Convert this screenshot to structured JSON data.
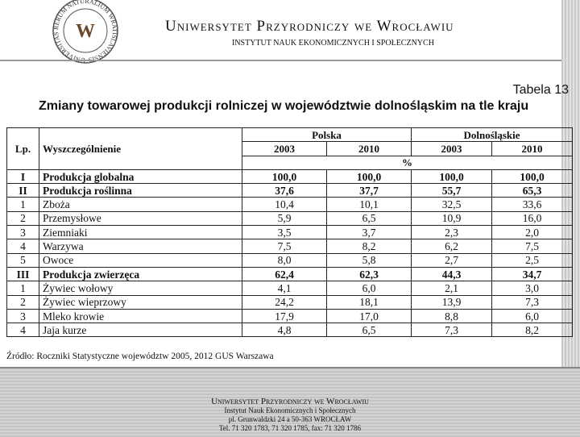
{
  "header": {
    "logo_text": "UNIVERSITAS RERUM NATURALIUM WRATISLAVIENSIS",
    "logo_letter": "W",
    "title": "Uniwersytet Przyrodniczy we Wrocławiu",
    "subtitle": "INSTYTUT NAUK EKONOMICZNYCH I SPOŁECZNYCH"
  },
  "table_label": "Tabela 13",
  "table_title": "Zmiany towarowej produkcji rolniczej w województwie dolnośląskim na tle kraju",
  "table": {
    "lp_header": "Lp.",
    "name_header": "Wyszczególnienie",
    "groups": [
      "Polska",
      "Dolnośląskie"
    ],
    "years": [
      "2003",
      "2010",
      "2003",
      "2010"
    ],
    "unit": "%",
    "rows": [
      {
        "lp": "I",
        "name": "Produkcja globalna",
        "values": [
          "100,0",
          "100,0",
          "100,0",
          "100,0"
        ],
        "bold": true
      },
      {
        "lp": "II",
        "name": "Produkcja roślinna",
        "values": [
          "37,6",
          "37,7",
          "55,7",
          "65,3"
        ],
        "bold": true
      },
      {
        "lp": "1",
        "name": "Zboża",
        "values": [
          "10,4",
          "10,1",
          "32,5",
          "33,6"
        ],
        "bold": false
      },
      {
        "lp": "2",
        "name": "Przemysłowe",
        "values": [
          "5,9",
          "6,5",
          "10,9",
          "16,0"
        ],
        "bold": false
      },
      {
        "lp": "3",
        "name": "Ziemniaki",
        "values": [
          "3,5",
          "3,7",
          "2,3",
          "2,0"
        ],
        "bold": false
      },
      {
        "lp": "4",
        "name": "Warzywa",
        "values": [
          "7,5",
          "8,2",
          "6,2",
          "7,5"
        ],
        "bold": false
      },
      {
        "lp": "5",
        "name": "Owoce",
        "values": [
          "8,0",
          "5,8",
          "2,7",
          "2,5"
        ],
        "bold": false
      },
      {
        "lp": "III",
        "name": "Produkcja zwierzęca",
        "values": [
          "62,4",
          "62,3",
          "44,3",
          "34,7"
        ],
        "bold": true
      },
      {
        "lp": "1",
        "name": "Żywiec wołowy",
        "values": [
          "4,1",
          "6,0",
          "2,1",
          "3,0"
        ],
        "bold": false
      },
      {
        "lp": "2",
        "name": "Żywiec wieprzowy",
        "values": [
          "24,2",
          "18,1",
          "13,9",
          "7,3"
        ],
        "bold": false
      },
      {
        "lp": "3",
        "name": "Mleko krowie",
        "values": [
          "17,9",
          "17,0",
          "8,8",
          "6,0"
        ],
        "bold": false
      },
      {
        "lp": "4",
        "name": "Jaja kurze",
        "values": [
          "4,8",
          "6,5",
          "7,3",
          "8,2"
        ],
        "bold": false
      }
    ]
  },
  "source": "Źródło: Roczniki Statystyczne województw 2005, 2012 GUS Warszawa",
  "footer": {
    "lines": [
      "Uniwersytet Przyrodniczy we Wrocławiu",
      "Instytut Nauk Ekonomicznych i Społecznych",
      "pl. Grunwaldzki 24 a 50-363 WROCŁAW",
      "Tel. 71 320 1783, 71 320 1785, fax: 71 320 1786"
    ]
  }
}
